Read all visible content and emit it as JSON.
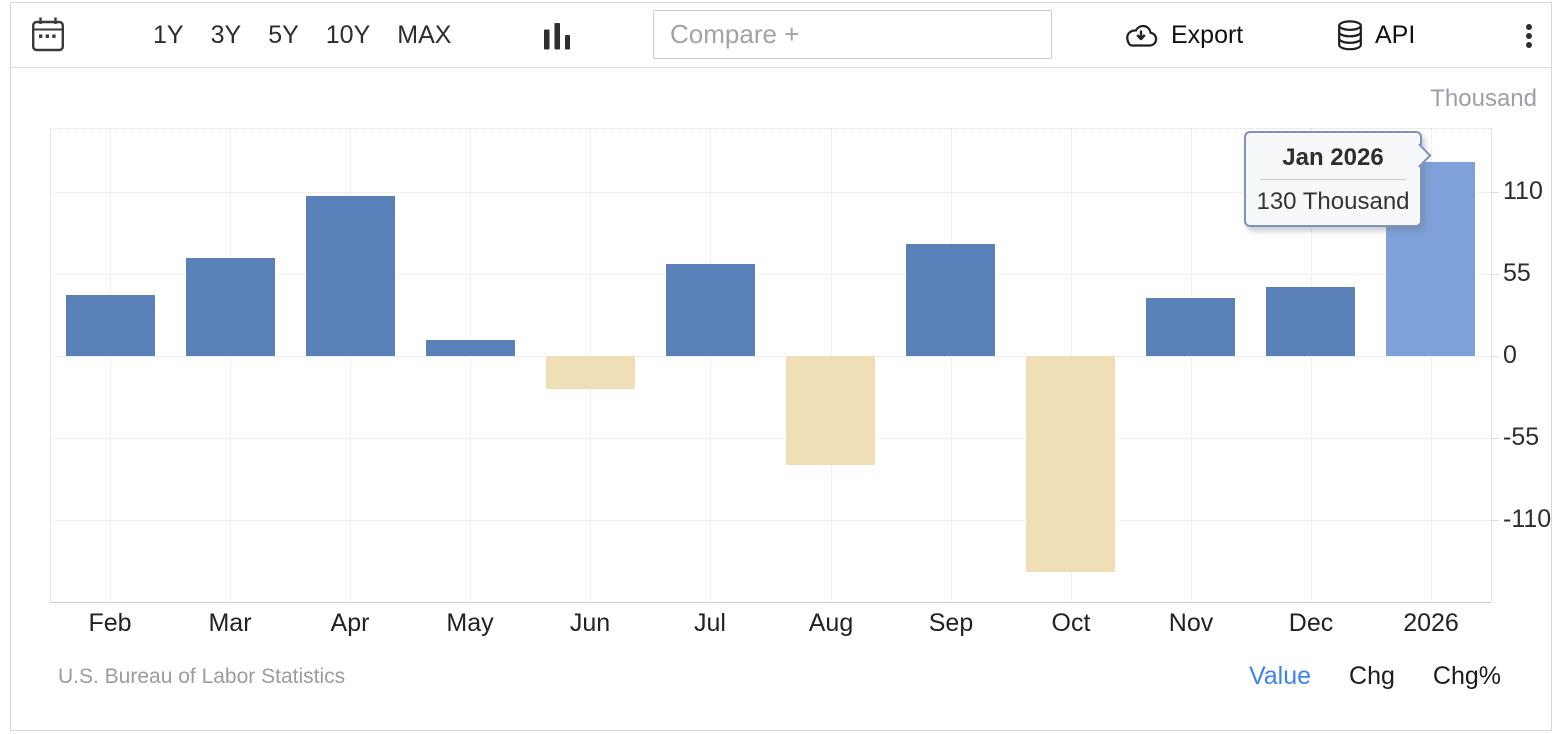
{
  "toolbar": {
    "ranges": [
      "1Y",
      "3Y",
      "5Y",
      "10Y",
      "MAX"
    ],
    "compare_placeholder": "Compare +",
    "export_label": "Export",
    "api_label": "API"
  },
  "chart": {
    "unit_label": "Thousand",
    "source": "U.S. Bureau of Labor Statistics",
    "views": [
      {
        "label": "Value",
        "active": true
      },
      {
        "label": "Chg",
        "active": false
      },
      {
        "label": "Chg%",
        "active": false
      }
    ]
  },
  "tooltip": {
    "title": "Jan 2026",
    "value": "130 Thousand"
  },
  "chart_data": {
    "type": "bar",
    "title": "",
    "categories": [
      "Feb",
      "Mar",
      "Apr",
      "May",
      "Jun",
      "Jul",
      "Aug",
      "Sep",
      "Oct",
      "Nov",
      "Dec",
      "2026"
    ],
    "values": [
      41,
      66,
      107,
      11,
      -22,
      62,
      -73,
      75,
      -145,
      39,
      46,
      130
    ],
    "unit": "Thousand",
    "ylabel": "Thousand",
    "yticks": [
      110,
      55,
      0,
      -55,
      -110
    ],
    "ylim": [
      -165,
      153
    ],
    "grid": "dotted",
    "legend": "none",
    "highlighted_index": 11,
    "highlighted_point": {
      "label": "Jan 2026",
      "value": 130,
      "text": "130 Thousand"
    },
    "colors": {
      "positive": "#5a80b8",
      "negative": "#f0dfb6",
      "highlighted": "#7da1d8"
    },
    "source": "U.S. Bureau of Labor Statistics"
  }
}
